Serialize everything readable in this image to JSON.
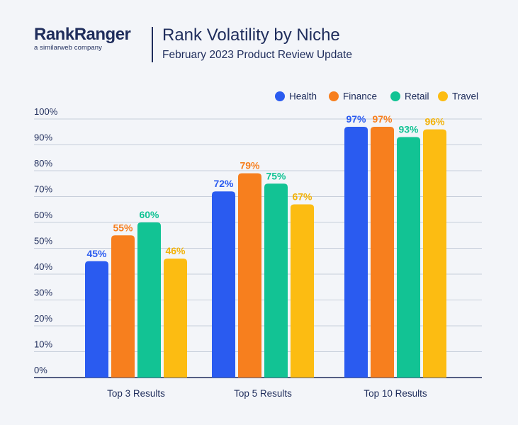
{
  "brand": {
    "name": "RankRanger",
    "tagline": "a similarweb company"
  },
  "header": {
    "title": "Rank Volatility by Niche",
    "subtitle": "February 2023 Product Review Update"
  },
  "colors": {
    "background": "#f3f5f9",
    "text": "#1f2d5c",
    "grid": "#b9c0cf"
  },
  "chart_data": {
    "type": "bar",
    "title": "Rank Volatility by Niche",
    "subtitle": "February 2023 Product Review Update",
    "categories": [
      "Top 3 Results",
      "Top 5 Results",
      "Top 10 Results"
    ],
    "series": [
      {
        "name": "Health",
        "color": "#2a5bf0",
        "label_color": "#2a5bf0",
        "values": [
          45,
          72,
          97
        ]
      },
      {
        "name": "Finance",
        "color": "#f77f1e",
        "label_color": "#f77f1e",
        "values": [
          55,
          79,
          97
        ]
      },
      {
        "name": "Retail",
        "color": "#12c394",
        "label_color": "#12c394",
        "values": [
          60,
          75,
          93
        ]
      },
      {
        "name": "Travel",
        "color": "#fcbc12",
        "label_color": "#f2b20a",
        "values": [
          46,
          67,
          96
        ]
      }
    ],
    "yticks": [
      "0%",
      "10%",
      "20%",
      "30%",
      "40%",
      "50%",
      "60%",
      "70%",
      "80%",
      "90%",
      "100%"
    ],
    "ylim": [
      0,
      100
    ],
    "value_suffix": "%",
    "xlabel": "",
    "ylabel": "",
    "grid": true,
    "legend_position": "top-right"
  }
}
